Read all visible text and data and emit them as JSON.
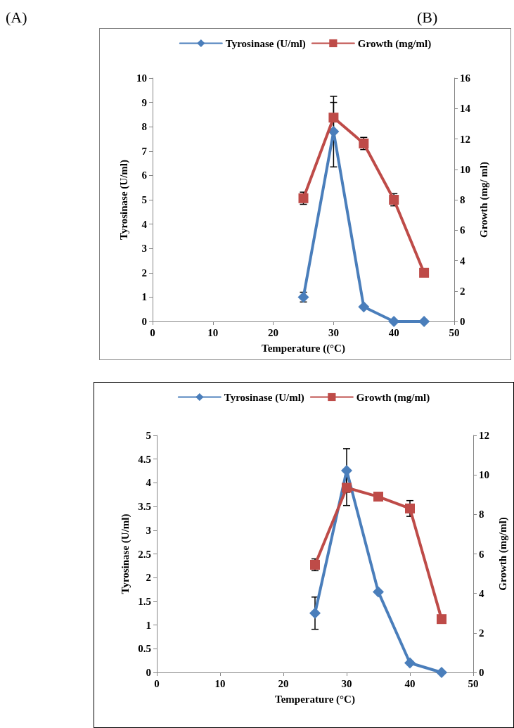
{
  "chart_data": [
    {
      "type": "line",
      "annotations": [
        "(A)"
      ],
      "xlabel": "Temperature ((°C)",
      "ylabel": "Tyrosinase (U/ml)",
      "y2label": "Growth (mg/ ml)",
      "x": [
        25,
        30,
        35,
        40,
        45
      ],
      "series": [
        {
          "name": "Tyrosinase (U/ml)",
          "color": "#4a7ebb",
          "marker": "diamond",
          "values": [
            1,
            7.8,
            0.6,
            0,
            0
          ],
          "errors": [
            0.2,
            1.45,
            null,
            null,
            null
          ]
        },
        {
          "name": "Growth (mg/ml)",
          "color": "#be4b48",
          "marker": "square",
          "axis": "y2",
          "values": [
            8.1,
            13.4,
            11.7,
            8.0,
            3.2
          ],
          "errors": [
            0.4,
            1.0,
            0.4,
            0.4,
            null
          ]
        }
      ],
      "xlim": [
        0,
        50
      ],
      "xticks": [
        0,
        10,
        20,
        30,
        40,
        50
      ],
      "ylim": [
        0,
        10
      ],
      "yticks": [
        0,
        1,
        2,
        3,
        4,
        5,
        6,
        7,
        8,
        9,
        10
      ],
      "y2lim": [
        0,
        16
      ],
      "y2ticks": [
        0,
        2,
        4,
        6,
        8,
        10,
        12,
        14,
        16
      ],
      "grid": false,
      "legend": "top"
    },
    {
      "type": "line",
      "annotations": [
        "(B)"
      ],
      "xlabel": "Temperature (°C)",
      "ylabel": "Tyrosinase (U/ml)",
      "y2label": "Growth (mg/ml)",
      "x": [
        25,
        30,
        35,
        40,
        45
      ],
      "series": [
        {
          "name": "Tyrosinase (U/ml)",
          "color": "#4a7ebb",
          "marker": "diamond",
          "values": [
            1.25,
            4.26,
            1.7,
            0.2,
            0
          ],
          "errors": [
            0.34,
            0.46,
            null,
            null,
            null
          ]
        },
        {
          "name": "Growth (mg/ml)",
          "color": "#be4b48",
          "marker": "square",
          "axis": "y2",
          "values": [
            5.45,
            9.35,
            8.9,
            8.3,
            2.7
          ],
          "errors": [
            0.3,
            0.9,
            null,
            0.4,
            null
          ]
        }
      ],
      "xlim": [
        0,
        50
      ],
      "xticks": [
        0,
        10,
        20,
        30,
        40,
        50
      ],
      "ylim": [
        0,
        5
      ],
      "yticks": [
        0,
        0.5,
        1,
        1.5,
        2,
        2.5,
        3,
        3.5,
        4,
        4.5,
        5
      ],
      "y2lim": [
        0,
        12
      ],
      "y2ticks": [
        0,
        2,
        4,
        6,
        8,
        10,
        12
      ],
      "grid": false,
      "legend": "top"
    }
  ]
}
